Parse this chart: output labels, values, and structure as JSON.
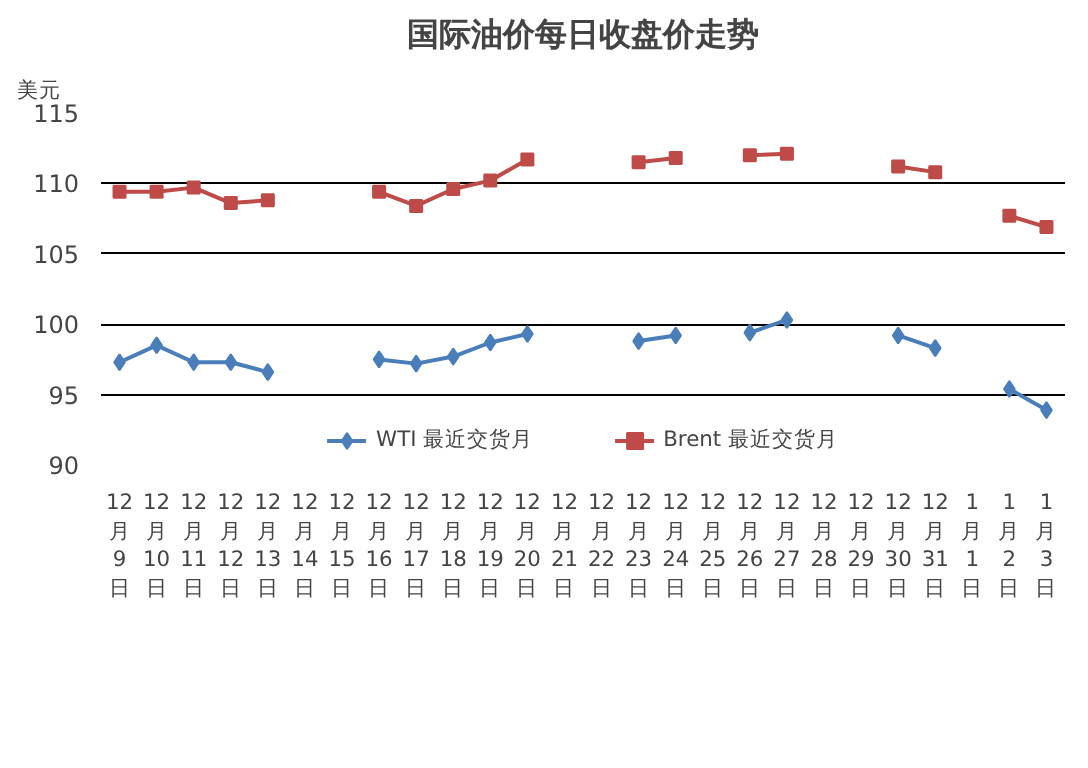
{
  "chart_data": {
    "type": "line",
    "title": "国际油价每日收盘价走势",
    "ylabel": "美元",
    "categories": [
      "12月9日",
      "12月10日",
      "12月11日",
      "12月12日",
      "12月13日",
      "12月14日",
      "12月15日",
      "12月16日",
      "12月17日",
      "12月18日",
      "12月19日",
      "12月20日",
      "12月21日",
      "12月22日",
      "12月23日",
      "12月24日",
      "12月25日",
      "12月26日",
      "12月27日",
      "12月28日",
      "12月29日",
      "12月30日",
      "12月31日",
      "1月1日",
      "1月2日",
      "1月3日"
    ],
    "series": [
      {
        "name": "WTI 最近交货月",
        "color": "#4a7ebb",
        "marker": "diamond",
        "values": [
          97.3,
          98.5,
          97.3,
          97.3,
          96.6,
          null,
          null,
          97.5,
          97.2,
          97.7,
          98.7,
          99.3,
          null,
          null,
          98.8,
          99.2,
          null,
          99.4,
          100.3,
          null,
          null,
          99.2,
          98.3,
          null,
          95.4,
          93.9
        ]
      },
      {
        "name": "Brent 最近交货月",
        "color": "#be4b48",
        "marker": "square",
        "values": [
          109.4,
          109.4,
          109.7,
          108.6,
          108.8,
          null,
          null,
          109.4,
          108.4,
          109.6,
          110.2,
          111.7,
          null,
          null,
          111.5,
          111.8,
          null,
          112.0,
          112.1,
          null,
          null,
          111.2,
          110.8,
          null,
          107.7,
          106.9
        ]
      }
    ],
    "ylim": [
      90,
      115
    ],
    "yticks": [
      90,
      95,
      100,
      105,
      110,
      115
    ],
    "grid": "y",
    "legend": "bottom",
    "line_style": "solid"
  }
}
